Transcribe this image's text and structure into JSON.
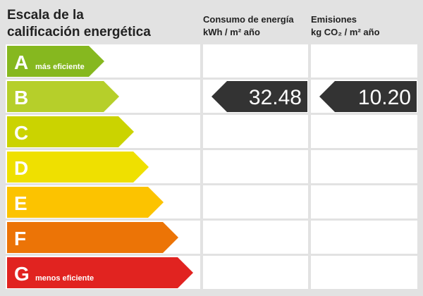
{
  "header": {
    "title": [
      "Escala de la",
      "calificación energética"
    ],
    "columns": [
      {
        "title": "Consumo de energía",
        "unit": "kWh / m² año"
      },
      {
        "title": "Emisiones",
        "unit": "kg CO₂ / m² año"
      }
    ]
  },
  "rows": [
    {
      "letter": "A",
      "note": "más eficiente",
      "color": "#86b81f"
    },
    {
      "letter": "B",
      "color": "#b6cf2a",
      "values": [
        "32.48",
        "10.20"
      ]
    },
    {
      "letter": "C",
      "color": "#cbd300"
    },
    {
      "letter": "D",
      "color": "#efe000"
    },
    {
      "letter": "E",
      "color": "#fcc300"
    },
    {
      "letter": "F",
      "color": "#ec7406"
    },
    {
      "letter": "G",
      "note": "menos eficiente",
      "color": "#e12320"
    }
  ]
}
